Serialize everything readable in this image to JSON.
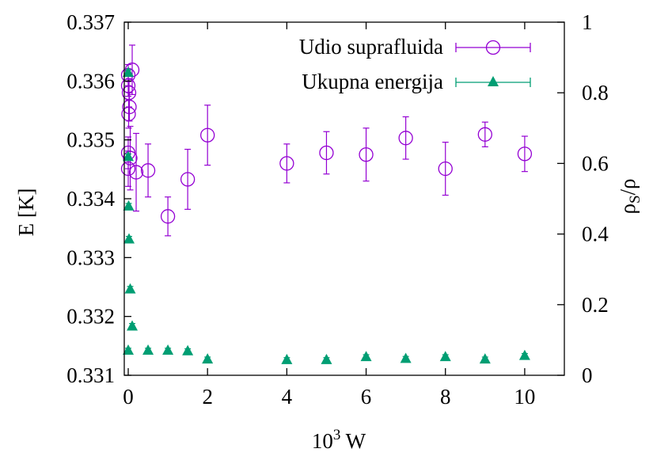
{
  "chart_data": {
    "type": "scatter",
    "title": "",
    "xlabel": {
      "base": "10",
      "sup": "3",
      "rest": " W"
    },
    "ylabel": "E [K]",
    "y2label": {
      "base": "ρ",
      "sub": "S",
      "rest": "/ρ"
    },
    "xlim": [
      -0.1,
      11
    ],
    "ylim": [
      0.331,
      0.337
    ],
    "y2lim": [
      0,
      1
    ],
    "xticks": [
      "0",
      "2",
      "4",
      "6",
      "8",
      "10"
    ],
    "yticks": [
      "0.331",
      "0.332",
      "0.333",
      "0.334",
      "0.335",
      "0.336",
      "0.337"
    ],
    "y2ticks": [
      "0",
      "0.2",
      "0.4",
      "0.6",
      "0.8",
      "1"
    ],
    "legend_position": "top-right",
    "grid": false,
    "series": [
      {
        "name": "Udio suprafluida",
        "axis": "y2",
        "marker": "open-circle",
        "color": "#9400d3",
        "points": [
          {
            "x": 0.0,
            "y": 0.585,
            "err": 0.05
          },
          {
            "x": 0.0,
            "y": 0.63,
            "err": 0.045
          },
          {
            "x": 0.0,
            "y": 0.82,
            "err": 0.03
          },
          {
            "x": 0.0,
            "y": 0.85,
            "err": 0.03
          },
          {
            "x": 0.01,
            "y": 0.74,
            "err": 0.04
          },
          {
            "x": 0.02,
            "y": 0.8,
            "err": 0.04
          },
          {
            "x": 0.03,
            "y": 0.76,
            "err": 0.04
          },
          {
            "x": 0.05,
            "y": 0.615,
            "err": 0.09
          },
          {
            "x": 0.1,
            "y": 0.865,
            "err": 0.07
          },
          {
            "x": 0.2,
            "y": 0.575,
            "err": 0.11
          },
          {
            "x": 0.5,
            "y": 0.58,
            "err": 0.075
          },
          {
            "x": 1.0,
            "y": 0.45,
            "err": 0.055
          },
          {
            "x": 1.5,
            "y": 0.555,
            "err": 0.085
          },
          {
            "x": 2.0,
            "y": 0.68,
            "err": 0.085
          },
          {
            "x": 4.0,
            "y": 0.6,
            "err": 0.055
          },
          {
            "x": 5.0,
            "y": 0.63,
            "err": 0.06
          },
          {
            "x": 6.0,
            "y": 0.625,
            "err": 0.075
          },
          {
            "x": 7.0,
            "y": 0.672,
            "err": 0.06
          },
          {
            "x": 8.0,
            "y": 0.585,
            "err": 0.075
          },
          {
            "x": 9.0,
            "y": 0.682,
            "err": 0.035
          },
          {
            "x": 10.0,
            "y": 0.627,
            "err": 0.05
          }
        ]
      },
      {
        "name": "Ukupna energija",
        "axis": "y",
        "marker": "filled-triangle",
        "color": "#009e73",
        "points": [
          {
            "x": 0.0,
            "y": 0.33615,
            "err": 4e-05
          },
          {
            "x": 0.0,
            "y": 0.33472,
            "err": 4e-05
          },
          {
            "x": 0.01,
            "y": 0.33388,
            "err": 4e-05
          },
          {
            "x": 0.02,
            "y": 0.33332,
            "err": 4e-05
          },
          {
            "x": 0.05,
            "y": 0.33247,
            "err": 4e-05
          },
          {
            "x": 0.1,
            "y": 0.33184,
            "err": 4e-05
          },
          {
            "x": 0.0,
            "y": 0.33143,
            "err": 3e-05
          },
          {
            "x": 0.5,
            "y": 0.33143,
            "err": 3e-05
          },
          {
            "x": 1.0,
            "y": 0.33143,
            "err": 3e-05
          },
          {
            "x": 1.5,
            "y": 0.33142,
            "err": 3e-05
          },
          {
            "x": 2.0,
            "y": 0.33128,
            "err": 3e-05
          },
          {
            "x": 4.0,
            "y": 0.33127,
            "err": 3e-05
          },
          {
            "x": 5.0,
            "y": 0.33127,
            "err": 3e-05
          },
          {
            "x": 6.0,
            "y": 0.33132,
            "err": 3e-05
          },
          {
            "x": 7.0,
            "y": 0.33129,
            "err": 3e-05
          },
          {
            "x": 8.0,
            "y": 0.33132,
            "err": 3e-05
          },
          {
            "x": 9.0,
            "y": 0.33128,
            "err": 3e-05
          },
          {
            "x": 10.0,
            "y": 0.33134,
            "err": 3e-05
          }
        ]
      }
    ]
  }
}
